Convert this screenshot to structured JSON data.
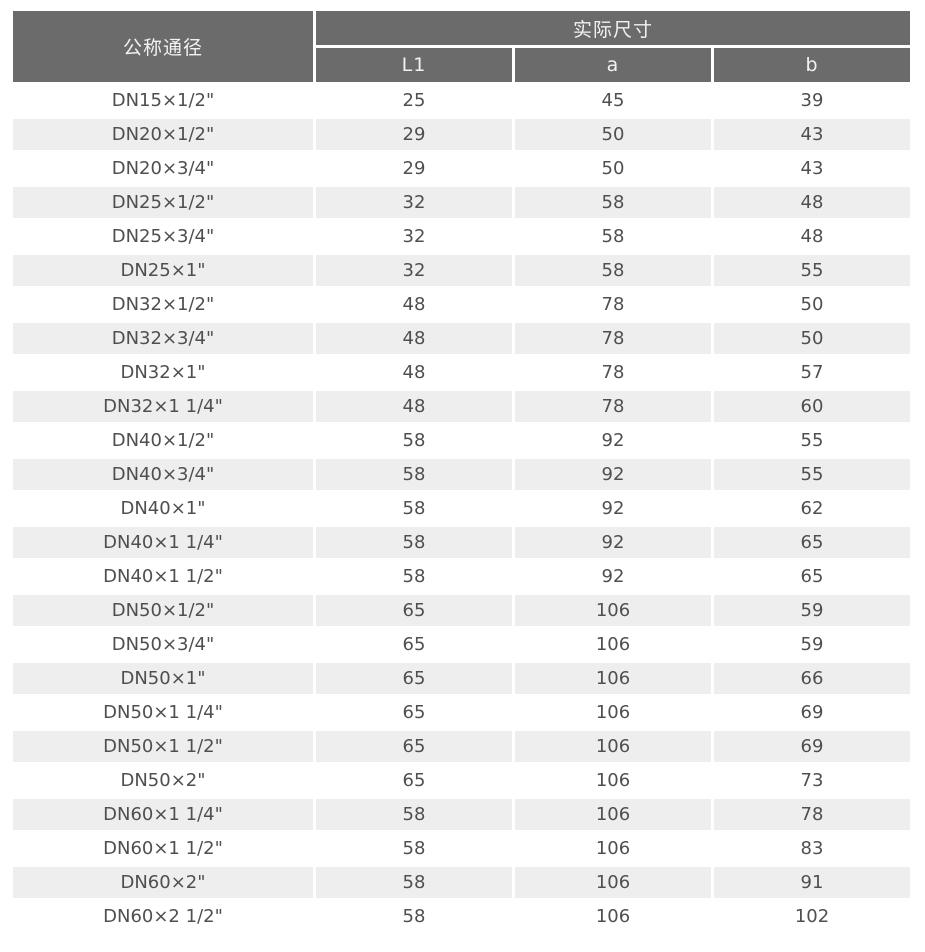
{
  "table": {
    "col1_header": "公称通径",
    "group_header": "实际尺寸",
    "sub_headers": [
      "L1",
      "a",
      "b"
    ],
    "rows": [
      [
        "DN15×1/2\"",
        "25",
        "45",
        "39"
      ],
      [
        "DN20×1/2\"",
        "29",
        "50",
        "43"
      ],
      [
        "DN20×3/4\"",
        "29",
        "50",
        "43"
      ],
      [
        "DN25×1/2\"",
        "32",
        "58",
        "48"
      ],
      [
        "DN25×3/4\"",
        "32",
        "58",
        "48"
      ],
      [
        "DN25×1\"",
        "32",
        "58",
        "55"
      ],
      [
        "DN32×1/2\"",
        "48",
        "78",
        "50"
      ],
      [
        "DN32×3/4\"",
        "48",
        "78",
        "50"
      ],
      [
        "DN32×1\"",
        "48",
        "78",
        "57"
      ],
      [
        "DN32×1 1/4\"",
        "48",
        "78",
        "60"
      ],
      [
        "DN40×1/2\"",
        "58",
        "92",
        "55"
      ],
      [
        "DN40×3/4\"",
        "58",
        "92",
        "55"
      ],
      [
        "DN40×1\"",
        "58",
        "92",
        "62"
      ],
      [
        "DN40×1 1/4\"",
        "58",
        "92",
        "65"
      ],
      [
        "DN40×1 1/2\"",
        "58",
        "92",
        "65"
      ],
      [
        "DN50×1/2\"",
        "65",
        "106",
        "59"
      ],
      [
        "DN50×3/4\"",
        "65",
        "106",
        "59"
      ],
      [
        "DN50×1\"",
        "65",
        "106",
        "66"
      ],
      [
        "DN50×1 1/4\"",
        "65",
        "106",
        "69"
      ],
      [
        "DN50×1 1/2\"",
        "65",
        "106",
        "69"
      ],
      [
        "DN50×2\"",
        "65",
        "106",
        "73"
      ],
      [
        "DN60×1 1/4\"",
        "58",
        "106",
        "78"
      ],
      [
        "DN60×1 1/2\"",
        "58",
        "106",
        "83"
      ],
      [
        "DN60×2\"",
        "58",
        "106",
        "91"
      ],
      [
        "DN60×2 1/2\"",
        "58",
        "106",
        "102"
      ]
    ],
    "colors": {
      "header_bg": "#6b6b6b",
      "header_text": "#f2f2f2",
      "stripe_bg": "#eeeeee",
      "body_text": "#4f4f4f",
      "page_bg": "#ffffff"
    }
  },
  "chart_data": {
    "type": "table",
    "title": "",
    "columns": [
      "公称通径",
      "L1",
      "a",
      "b"
    ],
    "column_groups": [
      {
        "label": "公称通径",
        "span": 1
      },
      {
        "label": "实际尺寸",
        "span": 3
      }
    ],
    "rows": [
      [
        "DN15×1/2\"",
        25,
        45,
        39
      ],
      [
        "DN20×1/2\"",
        29,
        50,
        43
      ],
      [
        "DN20×3/4\"",
        29,
        50,
        43
      ],
      [
        "DN25×1/2\"",
        32,
        58,
        48
      ],
      [
        "DN25×3/4\"",
        32,
        58,
        48
      ],
      [
        "DN25×1\"",
        32,
        58,
        55
      ],
      [
        "DN32×1/2\"",
        48,
        78,
        50
      ],
      [
        "DN32×3/4\"",
        48,
        78,
        50
      ],
      [
        "DN32×1\"",
        48,
        78,
        57
      ],
      [
        "DN32×1 1/4\"",
        48,
        78,
        60
      ],
      [
        "DN40×1/2\"",
        58,
        92,
        55
      ],
      [
        "DN40×3/4\"",
        58,
        92,
        55
      ],
      [
        "DN40×1\"",
        58,
        92,
        62
      ],
      [
        "DN40×1 1/4\"",
        58,
        92,
        65
      ],
      [
        "DN40×1 1/2\"",
        58,
        92,
        65
      ],
      [
        "DN50×1/2\"",
        65,
        106,
        59
      ],
      [
        "DN50×3/4\"",
        65,
        106,
        59
      ],
      [
        "DN50×1\"",
        65,
        106,
        66
      ],
      [
        "DN50×1 1/4\"",
        65,
        106,
        69
      ],
      [
        "DN50×1 1/2\"",
        65,
        106,
        69
      ],
      [
        "DN50×2\"",
        65,
        106,
        73
      ],
      [
        "DN60×1 1/4\"",
        58,
        106,
        78
      ],
      [
        "DN60×1 1/2\"",
        58,
        106,
        83
      ],
      [
        "DN60×2\"",
        58,
        106,
        91
      ],
      [
        "DN60×2 1/2\"",
        58,
        106,
        102
      ]
    ]
  }
}
